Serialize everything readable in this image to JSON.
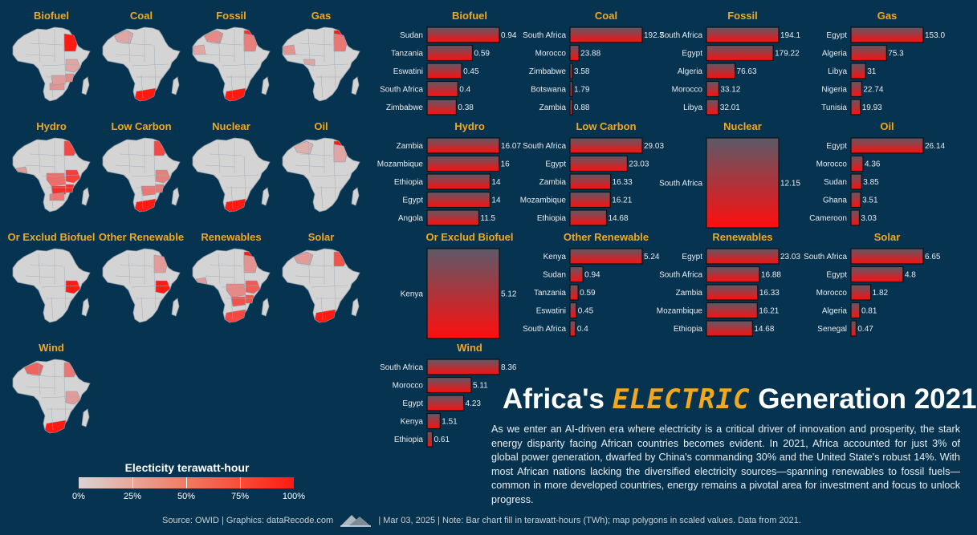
{
  "title": {
    "part1": "Africa's",
    "accent": "ELECTRIC",
    "part2": "Generation 2021"
  },
  "description": "As we enter an AI-driven era where electricity is a critical driver of innovation and prosperity, the stark energy disparity facing African countries becomes evident. In 2021, Africa accounted for just 3% of global power generation, dwarfed by China's commanding 30% and the United State's robust 14%. With most African nations lacking the diversified electricity sources—spanning renewables to fossil fuels—common in more developed countries, energy remains a pivotal area for investment and focus to unlock progress.",
  "footer": {
    "source": "Source: OWID | Graphics: dataRecode.com",
    "note": "| Mar 03, 2025 | Note: Bar chart fill in terawatt-hours (TWh); map polygons in scaled values. Data from 2021."
  },
  "legend": {
    "title": "Electicity terawatt-hour",
    "ticks": [
      "0%",
      "25%",
      "50%",
      "75%",
      "100%"
    ]
  },
  "colors": {
    "background": "#06334f",
    "accent": "#f2a81c",
    "bar_top": "#5b5a68",
    "bar_bottom": "#ff0e0e",
    "map_base": "#d4d4d4",
    "map_max": "#ff1a12"
  },
  "maps": [
    {
      "title": "Biofuel"
    },
    {
      "title": "Coal"
    },
    {
      "title": "Fossil"
    },
    {
      "title": "Gas"
    },
    {
      "title": "Hydro"
    },
    {
      "title": "Low Carbon"
    },
    {
      "title": "Nuclear"
    },
    {
      "title": "Oil"
    },
    {
      "title": "Or Exclud Biofuel"
    },
    {
      "title": "Other Renewable"
    },
    {
      "title": "Renewables"
    },
    {
      "title": "Solar"
    },
    {
      "title": "Wind"
    }
  ],
  "chart_data": [
    {
      "type": "bar",
      "title": "Biofuel",
      "categories": [
        "Sudan",
        "Tanzania",
        "Eswatini",
        "South Africa",
        "Zimbabwe"
      ],
      "values": [
        0.94,
        0.59,
        0.45,
        0.4,
        0.38
      ],
      "labels": [
        "0.94",
        "0.59",
        "0.45",
        "0.4",
        "0.38"
      ]
    },
    {
      "type": "bar",
      "title": "Coal",
      "categories": [
        "South Africa",
        "Morocco",
        "Zimbabwe",
        "Botswana",
        "Zambia"
      ],
      "values": [
        192.7,
        23.88,
        3.58,
        1.79,
        0.88
      ],
      "labels": [
        "192.7",
        "23.88",
        "3.58",
        "1.79",
        "0.88"
      ]
    },
    {
      "type": "bar",
      "title": "Fossil",
      "categories": [
        "South Africa",
        "Egypt",
        "Algeria",
        "Morocco",
        "Libya"
      ],
      "values": [
        194.1,
        179.22,
        76.63,
        33.12,
        32.01
      ],
      "labels": [
        "194.1",
        "179.22",
        "76.63",
        "33.12",
        "32.01"
      ]
    },
    {
      "type": "bar",
      "title": "Gas",
      "categories": [
        "Egypt",
        "Algeria",
        "Libya",
        "Nigeria",
        "Tunisia"
      ],
      "values": [
        153.0,
        75.3,
        31,
        22.74,
        19.93
      ],
      "labels": [
        "153.0",
        "75.3",
        "31",
        "22.74",
        "19.93"
      ]
    },
    {
      "type": "bar",
      "title": "Hydro",
      "categories": [
        "Zambia",
        "Mozambique",
        "Ethiopia",
        "Egypt",
        "Angola"
      ],
      "values": [
        16.07,
        16,
        14,
        14,
        11.5
      ],
      "labels": [
        "16.07",
        "16",
        "14",
        "14",
        "11.5"
      ]
    },
    {
      "type": "bar",
      "title": "Low Carbon",
      "categories": [
        "South Africa",
        "Egypt",
        "Zambia",
        "Mozambique",
        "Ethiopia"
      ],
      "values": [
        29.03,
        23.03,
        16.33,
        16.21,
        14.68
      ],
      "labels": [
        "29.03",
        "23.03",
        "16.33",
        "16.21",
        "14.68"
      ]
    },
    {
      "type": "bar",
      "title": "Nuclear",
      "categories": [
        "South Africa"
      ],
      "values": [
        12.15
      ],
      "labels": [
        "12.15"
      ]
    },
    {
      "type": "bar",
      "title": "Oil",
      "categories": [
        "Egypt",
        "Morocco",
        "Sudan",
        "Ghana",
        "Cameroon"
      ],
      "values": [
        26.14,
        4.36,
        3.85,
        3.51,
        3.03
      ],
      "labels": [
        "26.14",
        "4.36",
        "3.85",
        "3.51",
        "3.03"
      ]
    },
    {
      "type": "bar",
      "title": "Or Exclud Biofuel",
      "categories": [
        "Kenya"
      ],
      "values": [
        5.12
      ],
      "labels": [
        "5.12"
      ]
    },
    {
      "type": "bar",
      "title": "Other Renewable",
      "categories": [
        "Kenya",
        "Sudan",
        "Tanzania",
        "Eswatini",
        "South Africa"
      ],
      "values": [
        5.24,
        0.94,
        0.59,
        0.45,
        0.4
      ],
      "labels": [
        "5.24",
        "0.94",
        "0.59",
        "0.45",
        "0.4"
      ]
    },
    {
      "type": "bar",
      "title": "Renewables",
      "categories": [
        "Egypt",
        "South Africa",
        "Zambia",
        "Mozambique",
        "Ethiopia"
      ],
      "values": [
        23.03,
        16.88,
        16.33,
        16.21,
        14.68
      ],
      "labels": [
        "23.03",
        "16.88",
        "16.33",
        "16.21",
        "14.68"
      ]
    },
    {
      "type": "bar",
      "title": "Solar",
      "categories": [
        "South Africa",
        "Egypt",
        "Morocco",
        "Algeria",
        "Senegal"
      ],
      "values": [
        6.65,
        4.8,
        1.82,
        0.81,
        0.47
      ],
      "labels": [
        "6.65",
        "4.8",
        "1.82",
        "0.81",
        "0.47"
      ]
    },
    {
      "type": "bar",
      "title": "Wind",
      "categories": [
        "South Africa",
        "Morocco",
        "Egypt",
        "Kenya",
        "Ethiopia"
      ],
      "values": [
        8.36,
        5.11,
        4.23,
        1.51,
        0.61
      ],
      "labels": [
        "8.36",
        "5.11",
        "4.23",
        "1.51",
        "0.61"
      ]
    }
  ]
}
